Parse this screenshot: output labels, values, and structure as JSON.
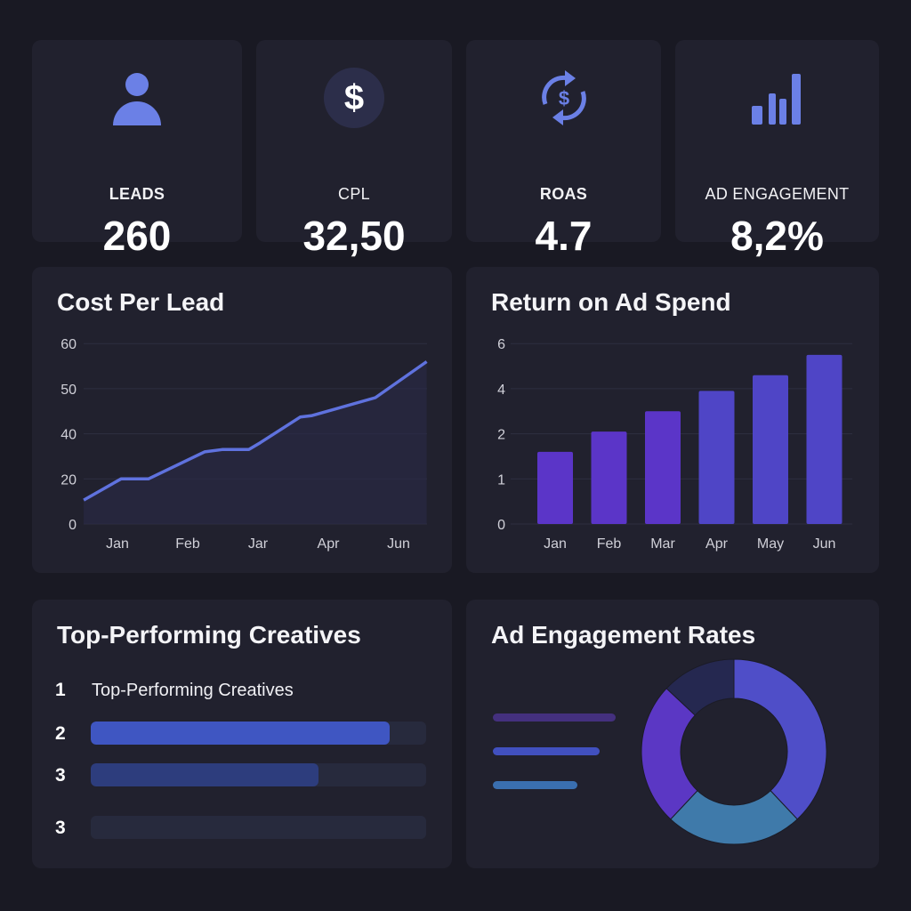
{
  "kpis": [
    {
      "label": "LEADS",
      "value": "260",
      "icon": "user-icon"
    },
    {
      "label": "CPL",
      "value": "32,50",
      "icon": "dollar-icon"
    },
    {
      "label": "ROAS",
      "value": "4.7",
      "icon": "dollar-cycle-icon"
    },
    {
      "label": "AD ENGAGEMENT",
      "value": "8,2%",
      "icon": "bar-signal-icon"
    }
  ],
  "colors": {
    "accent": "#6b80e6",
    "background": "#191923",
    "card": "#21212e"
  },
  "cost_per_lead": {
    "title": "Cost Per Lead"
  },
  "roas_chart": {
    "title": "Return on Ad Spend"
  },
  "creatives": {
    "title": "Top-Performing Creatives",
    "items": [
      {
        "rank": "1",
        "label": "Top-Performing Creatives"
      },
      {
        "rank": "2",
        "progress": 0.89,
        "color": "#3f56c2"
      },
      {
        "rank": "3",
        "progress": 0.68,
        "color": "#2d3d7d"
      },
      {
        "rank": "3",
        "progress": 0
      }
    ]
  },
  "engagement": {
    "title": "Ad Engagement Rates"
  },
  "chart_data": [
    {
      "type": "area",
      "title": "Cost Per Lead",
      "yticks": [
        0,
        20,
        40,
        50,
        60
      ],
      "xticks": [
        "Jan",
        "Feb",
        "Jar",
        "Apr",
        "Jun"
      ],
      "grid": true,
      "color": "#5f72de",
      "points": [
        [
          -0.48,
          10.6
        ],
        [
          0.05,
          20
        ],
        [
          0.44,
          20
        ],
        [
          1.24,
          32
        ],
        [
          1.49,
          33
        ],
        [
          1.87,
          33
        ],
        [
          2.03,
          36
        ],
        [
          2.6,
          43.7
        ],
        [
          2.76,
          44
        ],
        [
          3.67,
          48
        ],
        [
          4.4,
          56
        ]
      ]
    },
    {
      "type": "bar",
      "title": "Return on Ad Spend",
      "yticks": [
        0,
        1,
        2,
        4,
        6
      ],
      "categories": [
        "Jan",
        "Feb",
        "Mar",
        "Apr",
        "May",
        "Jun"
      ],
      "values": [
        1.6,
        2.1,
        3.0,
        3.9,
        4.6,
        5.5
      ],
      "colors": [
        "#5b35c8",
        "#5b35c8",
        "#5b35c8",
        "#4f45c6",
        "#4f45c6",
        "#4f45c6"
      ],
      "grid": true
    },
    {
      "type": "pie",
      "donut": true,
      "values": [
        38,
        24,
        25,
        13
      ],
      "colors": [
        "#4f4ec8",
        "#3f7aaa",
        "#5b37c4",
        "#252850"
      ],
      "legend_bars": [
        {
          "color": "#44307e",
          "length": 1.0
        },
        {
          "color": "#4150bf",
          "length": 0.87
        },
        {
          "color": "#3a6fb0",
          "length": 0.69
        }
      ]
    }
  ]
}
